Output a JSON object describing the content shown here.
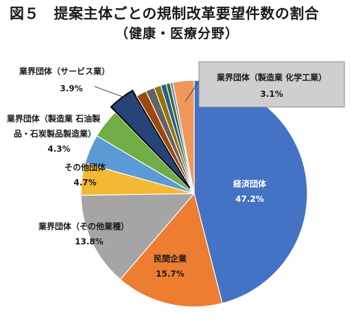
{
  "header": {
    "title": "図５　提案主体ごとの規制改革要望件数の割合",
    "subtitle": "（健康・医療分野）"
  },
  "chart_data": {
    "type": "pie",
    "title": "図５　提案主体ごとの規制改革要望件数の割合",
    "subtitle": "（健康・医療分野）",
    "slices": [
      {
        "label": "経済団体",
        "value": 47.2,
        "value_text": "47.2%",
        "color": "#4472c4"
      },
      {
        "label": "民間企業",
        "value": 15.7,
        "value_text": "15.7%",
        "color": "#ed7d31"
      },
      {
        "label": "業界団体（その他業種）",
        "value": 13.8,
        "value_text": "13.8%",
        "color": "#a5a5a5"
      },
      {
        "label": "その他団体",
        "value": 4.7,
        "value_text": "4.7%",
        "color": "#f5b835"
      },
      {
        "label": "業界団体（製造業 石油製品・石炭製品製造業）",
        "value": 4.3,
        "value_text": "4.3%",
        "color": "#5b9bd5"
      },
      {
        "label": "",
        "value": 4.3,
        "value_text": "",
        "color": "#70ad47"
      },
      {
        "label": "業界団体（サービス業）",
        "value": 3.9,
        "value_text": "3.9%",
        "color": "#264478",
        "exploded": true
      },
      {
        "label": "",
        "value": 1.5,
        "value_text": "",
        "color": "#9e480e"
      },
      {
        "label": "",
        "value": 1.3,
        "value_text": "",
        "color": "#636363"
      },
      {
        "label": "",
        "value": 1.0,
        "value_text": "",
        "color": "#997300"
      },
      {
        "label": "",
        "value": 0.8,
        "value_text": "",
        "color": "#255e91"
      },
      {
        "label": "",
        "value": 0.6,
        "value_text": "",
        "color": "#43682b"
      },
      {
        "label": "",
        "value": 0.4,
        "value_text": "",
        "color": "#698ed0"
      },
      {
        "label": "業界団体（製造業 化学工業）",
        "value": 3.1,
        "value_text": "3.1%",
        "color": "#f1975a"
      }
    ]
  },
  "labels": {
    "keizai": {
      "name": "経済団体",
      "pct": "47.2%"
    },
    "minkan": {
      "name": "民間企業",
      "pct": "15.7%"
    },
    "sonota_gyoshu": {
      "name": "業界団体（その他業種）",
      "pct": "13.8%"
    },
    "sonota_dantai": {
      "name": "その他団体",
      "pct": "4.7%"
    },
    "sekiyu": {
      "line1": "業界団体（製造業 石油製",
      "line2": "品・石炭製品製造業）",
      "pct": "4.3%"
    },
    "service": {
      "name": "業界団体（サービス業）",
      "pct": "3.9%"
    },
    "kagaku": {
      "name": "業界団体（製造業 化学工業）",
      "pct": "3.1%"
    }
  }
}
